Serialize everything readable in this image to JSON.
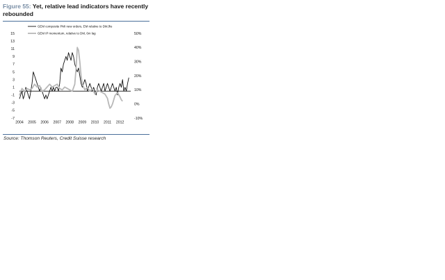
{
  "figure": {
    "label": "Figure 55:",
    "title": "Yet, relative lead indicators have recently rebounded",
    "source": "Source: Thomson Reuters, Credit Suisse research"
  },
  "chart_data": {
    "type": "line",
    "title": "Yet, relative lead indicators have recently rebounded",
    "x_ticks": [
      "2004",
      "2005",
      "2006",
      "2007",
      "2008",
      "2009",
      "2010",
      "2011",
      "2012"
    ],
    "y_left_ticks": [
      "15",
      "13",
      "11",
      "9",
      "7",
      "5",
      "3",
      "1",
      "-1",
      "-3",
      "-5",
      "-7"
    ],
    "y_right_ticks": [
      "50%",
      "40%",
      "30%",
      "20%",
      "10%",
      "0%",
      "-10%"
    ],
    "ylim_left": [
      -7,
      15
    ],
    "ylim_right": [
      -10,
      50
    ],
    "grid": false,
    "legend_position": "top-left",
    "reference_line": 0,
    "series": [
      {
        "name": "GEM composite PMI new orders, EM relative to DM,lhs",
        "axis": "left",
        "color": "#111111",
        "x": [
          2004.0,
          2004.1,
          2004.2,
          2004.3,
          2004.4,
          2004.5,
          2004.6,
          2004.7,
          2004.8,
          2004.9,
          2005.0,
          2005.1,
          2005.2,
          2005.3,
          2005.4,
          2005.5,
          2005.6,
          2005.7,
          2005.8,
          2005.9,
          2006.0,
          2006.1,
          2006.2,
          2006.3,
          2006.4,
          2006.5,
          2006.6,
          2006.7,
          2006.8,
          2006.9,
          2007.0,
          2007.1,
          2007.2,
          2007.3,
          2007.4,
          2007.5,
          2007.6,
          2007.7,
          2007.8,
          2007.9,
          2008.0,
          2008.1,
          2008.2,
          2008.3,
          2008.4,
          2008.5,
          2008.6,
          2008.7,
          2008.8,
          2008.9,
          2009.0,
          2009.1,
          2009.2,
          2009.3,
          2009.4,
          2009.5,
          2009.6,
          2009.7,
          2009.8,
          2009.9,
          2010.0,
          2010.1,
          2010.2,
          2010.3,
          2010.4,
          2010.5,
          2010.6,
          2010.7,
          2010.8,
          2010.9,
          2011.0,
          2011.1,
          2011.2,
          2011.3,
          2011.4,
          2011.5,
          2011.6,
          2011.7,
          2011.8,
          2011.9,
          2012.0,
          2012.1,
          2012.2,
          2012.3,
          2012.4,
          2012.5,
          2012.6,
          2012.7
        ],
        "y": [
          -2,
          -1,
          0,
          -2,
          -1,
          1,
          0,
          -1,
          -2,
          0,
          2,
          5,
          4,
          3,
          2,
          1,
          0,
          1,
          0,
          -1,
          -2,
          -1,
          -2,
          -1,
          0,
          1,
          0,
          1,
          0,
          1,
          1,
          0,
          2,
          6,
          5,
          7,
          8,
          9,
          8,
          10,
          9,
          8,
          10,
          9,
          7,
          6,
          5,
          6,
          4,
          2,
          1,
          2,
          3,
          2,
          0,
          1,
          2,
          1,
          0,
          1,
          0,
          -1,
          1,
          2,
          1,
          0,
          1,
          2,
          0,
          1,
          2,
          1,
          0,
          1,
          2,
          1,
          0,
          1,
          -1,
          1,
          2,
          1,
          3,
          0,
          1,
          0,
          2,
          3.5
        ]
      },
      {
        "name": "GEM IP momentum, relative to DM, 6m lag",
        "axis": "right",
        "color": "#b8b8b8",
        "x": [
          2004.0,
          2004.2,
          2004.4,
          2004.6,
          2004.8,
          2005.0,
          2005.2,
          2005.4,
          2005.6,
          2005.8,
          2006.0,
          2006.2,
          2006.4,
          2006.6,
          2006.8,
          2007.0,
          2007.2,
          2007.4,
          2007.6,
          2007.8,
          2008.0,
          2008.2,
          2008.4,
          2008.5,
          2008.6,
          2008.7,
          2008.8,
          2008.9,
          2009.0,
          2009.2,
          2009.4,
          2009.6,
          2009.8,
          2010.0,
          2010.2,
          2010.4,
          2010.6,
          2010.8,
          2011.0,
          2011.1,
          2011.2,
          2011.3,
          2011.4,
          2011.5,
          2011.6,
          2011.8,
          2012.0,
          2012.1,
          2012.2
        ],
        "y": [
          6,
          11,
          9,
          11,
          10,
          11,
          14,
          12,
          13,
          9,
          10,
          12,
          14,
          12,
          13,
          14,
          11,
          10,
          12,
          11,
          10,
          9,
          14,
          25,
          40,
          38,
          30,
          20,
          14,
          10,
          12,
          9,
          11,
          7,
          10,
          9,
          8,
          7,
          4,
          0,
          -3,
          -2,
          0,
          3,
          6,
          8,
          5,
          3,
          2
        ]
      }
    ]
  }
}
